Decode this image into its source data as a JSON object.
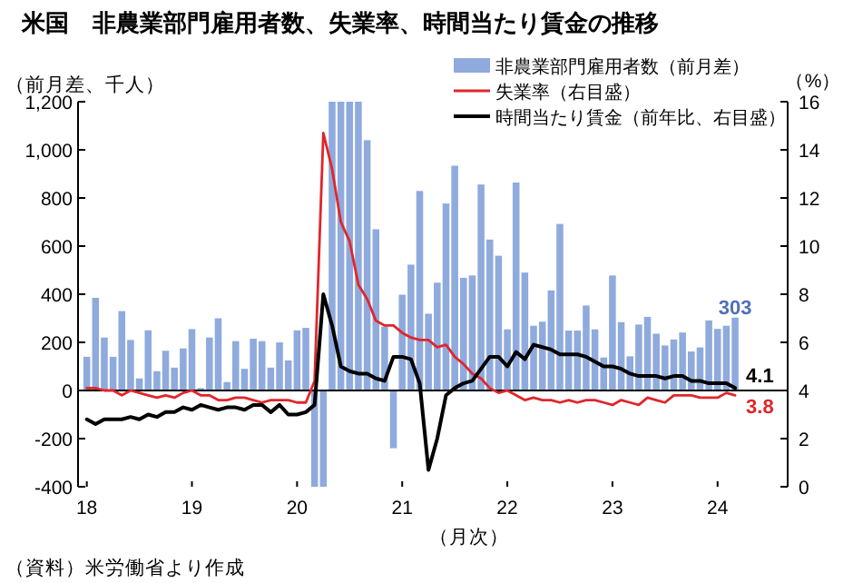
{
  "chart_data": {
    "type": "bar",
    "title": "米国　非農業部門雇用者数、失業率、時間当たり賃金の推移",
    "ylabel": "（前月差、千人）",
    "y2label": "（%）",
    "xlabel": "（月次）",
    "annotations": [
      "（資料）米労働省より作成"
    ],
    "x": [
      "2018-01",
      "2018-02",
      "2018-03",
      "2018-04",
      "2018-05",
      "2018-06",
      "2018-07",
      "2018-08",
      "2018-09",
      "2018-10",
      "2018-11",
      "2018-12",
      "2019-01",
      "2019-02",
      "2019-03",
      "2019-04",
      "2019-05",
      "2019-06",
      "2019-07",
      "2019-08",
      "2019-09",
      "2019-10",
      "2019-11",
      "2019-12",
      "2020-01",
      "2020-02",
      "2020-03",
      "2020-04",
      "2020-05",
      "2020-06",
      "2020-07",
      "2020-08",
      "2020-09",
      "2020-10",
      "2020-11",
      "2020-12",
      "2021-01",
      "2021-02",
      "2021-03",
      "2021-04",
      "2021-05",
      "2021-06",
      "2021-07",
      "2021-08",
      "2021-09",
      "2021-10",
      "2021-11",
      "2021-12",
      "2022-01",
      "2022-02",
      "2022-03",
      "2022-04",
      "2022-05",
      "2022-06",
      "2022-07",
      "2022-08",
      "2022-09",
      "2022-10",
      "2022-11",
      "2022-12",
      "2023-01",
      "2023-02",
      "2023-03",
      "2023-04",
      "2023-05",
      "2023-06",
      "2023-07",
      "2023-08",
      "2023-09",
      "2023-10",
      "2023-11",
      "2023-12",
      "2024-01",
      "2024-02",
      "2024-03"
    ],
    "xlim": [
      "2017-12",
      "2024-09"
    ],
    "xticks": [
      {
        "value": "2018-01",
        "label": "18"
      },
      {
        "value": "2019-01",
        "label": "19"
      },
      {
        "value": "2020-01",
        "label": "20"
      },
      {
        "value": "2021-01",
        "label": "21"
      },
      {
        "value": "2022-01",
        "label": "22"
      },
      {
        "value": "2023-01",
        "label": "23"
      },
      {
        "value": "2024-01",
        "label": "24"
      }
    ],
    "ylim": [
      -400,
      1200
    ],
    "yticks": [
      -400,
      -200,
      0,
      200,
      400,
      600,
      800,
      {
        "value": 1000,
        "label": "1,000"
      },
      {
        "value": 1200,
        "label": "1,200"
      }
    ],
    "y2lim": [
      0,
      16
    ],
    "y2ticks": [
      0,
      2,
      4,
      6,
      8,
      10,
      12,
      14,
      16
    ],
    "legend": "top right",
    "series": [
      {
        "name": "非農業部門雇用者数（前月差）",
        "color": "#8faadc",
        "values": [
          140,
          385,
          220,
          140,
          330,
          210,
          50,
          250,
          80,
          165,
          95,
          175,
          255,
          10,
          220,
          300,
          35,
          205,
          90,
          215,
          205,
          95,
          200,
          125,
          250,
          260,
          -400,
          -400,
          1200,
          1200,
          1200,
          1200,
          1040,
          670,
          265,
          -240,
          398,
          523,
          829,
          319,
          448,
          777,
          934,
          468,
          478,
          856,
          627,
          560,
          254,
          864,
          490,
          269,
          286,
          416,
          692,
          249,
          249,
          353,
          254,
          137,
          478,
          284,
          142,
          274,
          306,
          236,
          187,
          212,
          241,
          162,
          179,
          291,
          256,
          269,
          303
        ],
        "value_labels": [
          null,
          null,
          null,
          null,
          null,
          null,
          null,
          null,
          null,
          null,
          null,
          null,
          null,
          null,
          null,
          null,
          null,
          null,
          null,
          null,
          null,
          null,
          null,
          null,
          null,
          null,
          null,
          null,
          null,
          null,
          null,
          null,
          null,
          null,
          null,
          null,
          null,
          null,
          null,
          null,
          null,
          null,
          null,
          null,
          null,
          null,
          null,
          null,
          null,
          null,
          null,
          null,
          null,
          null,
          null,
          null,
          null,
          null,
          null,
          null,
          null,
          null,
          null,
          null,
          null,
          null,
          null,
          null,
          null,
          null,
          null,
          null,
          null,
          null,
          "303"
        ]
      },
      {
        "name": "失業率（右目盛）",
        "type": "line",
        "axis": "y2",
        "color": "#e0262b",
        "values": [
          4.1,
          4.1,
          4.0,
          4.0,
          3.8,
          4.0,
          3.9,
          3.8,
          3.7,
          3.8,
          3.7,
          3.9,
          4.0,
          3.8,
          3.8,
          3.6,
          3.6,
          3.7,
          3.7,
          3.6,
          3.5,
          3.6,
          3.6,
          3.6,
          3.5,
          3.5,
          4.4,
          14.7,
          13.2,
          11.0,
          10.2,
          8.4,
          7.8,
          6.9,
          6.7,
          6.7,
          6.4,
          6.2,
          6.1,
          6.1,
          5.8,
          5.9,
          5.4,
          5.1,
          4.7,
          4.5,
          4.1,
          3.9,
          4.0,
          3.8,
          3.6,
          3.7,
          3.6,
          3.6,
          3.5,
          3.6,
          3.5,
          3.6,
          3.6,
          3.5,
          3.4,
          3.6,
          3.5,
          3.4,
          3.7,
          3.6,
          3.5,
          3.8,
          3.8,
          3.8,
          3.7,
          3.7,
          3.7,
          3.9,
          3.8
        ],
        "value_labels": [
          null,
          null,
          null,
          null,
          null,
          null,
          null,
          null,
          null,
          null,
          null,
          null,
          null,
          null,
          null,
          null,
          null,
          null,
          null,
          null,
          null,
          null,
          null,
          null,
          null,
          null,
          null,
          null,
          null,
          null,
          null,
          null,
          null,
          null,
          null,
          null,
          null,
          null,
          null,
          null,
          null,
          null,
          null,
          null,
          null,
          null,
          null,
          null,
          null,
          null,
          null,
          null,
          null,
          null,
          null,
          null,
          null,
          null,
          null,
          null,
          null,
          null,
          null,
          null,
          null,
          null,
          null,
          null,
          null,
          null,
          null,
          null,
          null,
          null,
          "3.8"
        ]
      },
      {
        "name": "時間当たり賃金（前年比、右目盛）",
        "type": "line",
        "axis": "y2",
        "color": "#000000",
        "values": [
          2.8,
          2.6,
          2.8,
          2.8,
          2.8,
          2.9,
          2.8,
          3.0,
          2.9,
          3.1,
          3.1,
          3.3,
          3.2,
          3.4,
          3.3,
          3.2,
          3.3,
          3.3,
          3.2,
          3.4,
          3.4,
          3.1,
          3.4,
          3.0,
          3.0,
          3.1,
          3.4,
          8.0,
          6.7,
          5.0,
          4.8,
          4.7,
          4.7,
          4.5,
          4.4,
          5.4,
          5.4,
          5.3,
          4.3,
          0.7,
          2.0,
          3.8,
          4.1,
          4.3,
          4.4,
          4.9,
          5.4,
          5.4,
          5.0,
          5.6,
          5.3,
          5.9,
          5.8,
          5.7,
          5.5,
          5.5,
          5.5,
          5.4,
          5.2,
          5.0,
          5.0,
          4.9,
          4.7,
          4.6,
          4.6,
          4.6,
          4.5,
          4.6,
          4.6,
          4.4,
          4.4,
          4.3,
          4.3,
          4.3,
          4.1
        ],
        "value_labels": [
          null,
          null,
          null,
          null,
          null,
          null,
          null,
          null,
          null,
          null,
          null,
          null,
          null,
          null,
          null,
          null,
          null,
          null,
          null,
          null,
          null,
          null,
          null,
          null,
          null,
          null,
          null,
          null,
          null,
          null,
          null,
          null,
          null,
          null,
          null,
          null,
          null,
          null,
          null,
          null,
          null,
          null,
          null,
          null,
          null,
          null,
          null,
          null,
          null,
          null,
          null,
          null,
          null,
          null,
          null,
          null,
          null,
          null,
          null,
          null,
          null,
          null,
          null,
          null,
          null,
          null,
          null,
          null,
          null,
          null,
          null,
          null,
          null,
          null,
          "4.1"
        ]
      }
    ]
  }
}
